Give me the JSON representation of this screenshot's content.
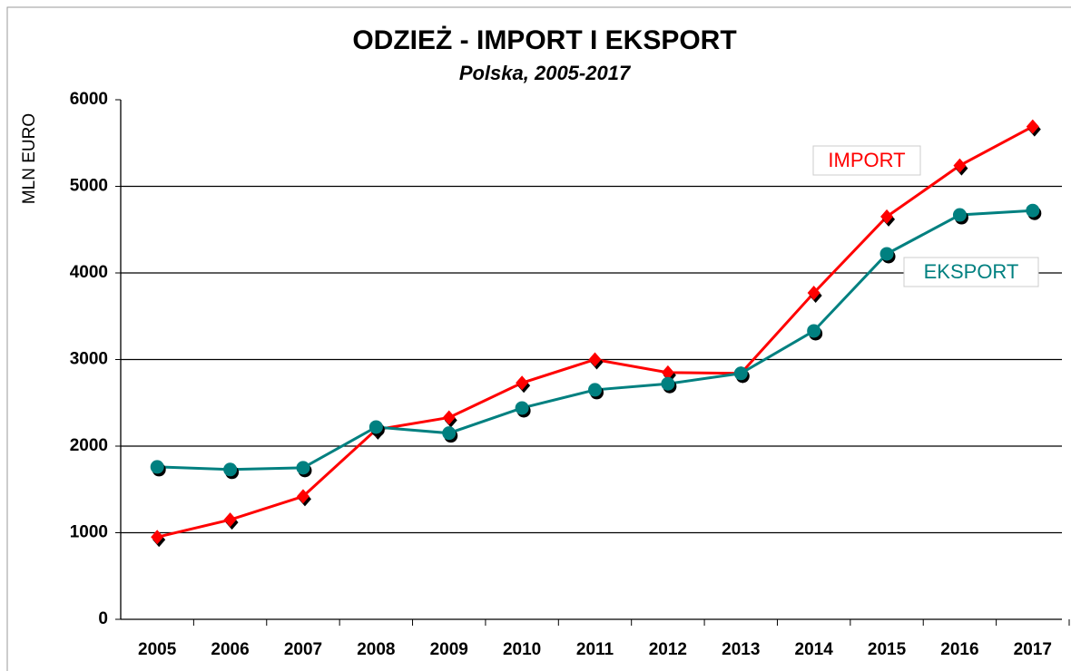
{
  "chart_data": {
    "type": "line",
    "title": "ODZIEŻ - IMPORT I EKSPORT",
    "subtitle": "Polska, 2005-2017",
    "y_label": "MLN EURO",
    "categories": [
      "2005",
      "2006",
      "2007",
      "2008",
      "2009",
      "2010",
      "2011",
      "2012",
      "2013",
      "2014",
      "2015",
      "2016",
      "2017"
    ],
    "series": [
      {
        "name": "IMPORT",
        "color": "#ff0000",
        "marker": "diamond",
        "values": [
          950,
          1150,
          1420,
          2190,
          2330,
          2730,
          3000,
          2850,
          2840,
          3770,
          4650,
          5240,
          5690
        ]
      },
      {
        "name": "EKSPORT",
        "color": "#008080",
        "marker": "circle",
        "values": [
          1760,
          1730,
          1750,
          2220,
          2150,
          2440,
          2650,
          2720,
          2840,
          3330,
          4220,
          4670,
          4720
        ]
      }
    ],
    "ylim": [
      0,
      6000
    ],
    "yticks": [
      0,
      1000,
      2000,
      3000,
      4000,
      5000,
      6000
    ],
    "grid": true
  }
}
